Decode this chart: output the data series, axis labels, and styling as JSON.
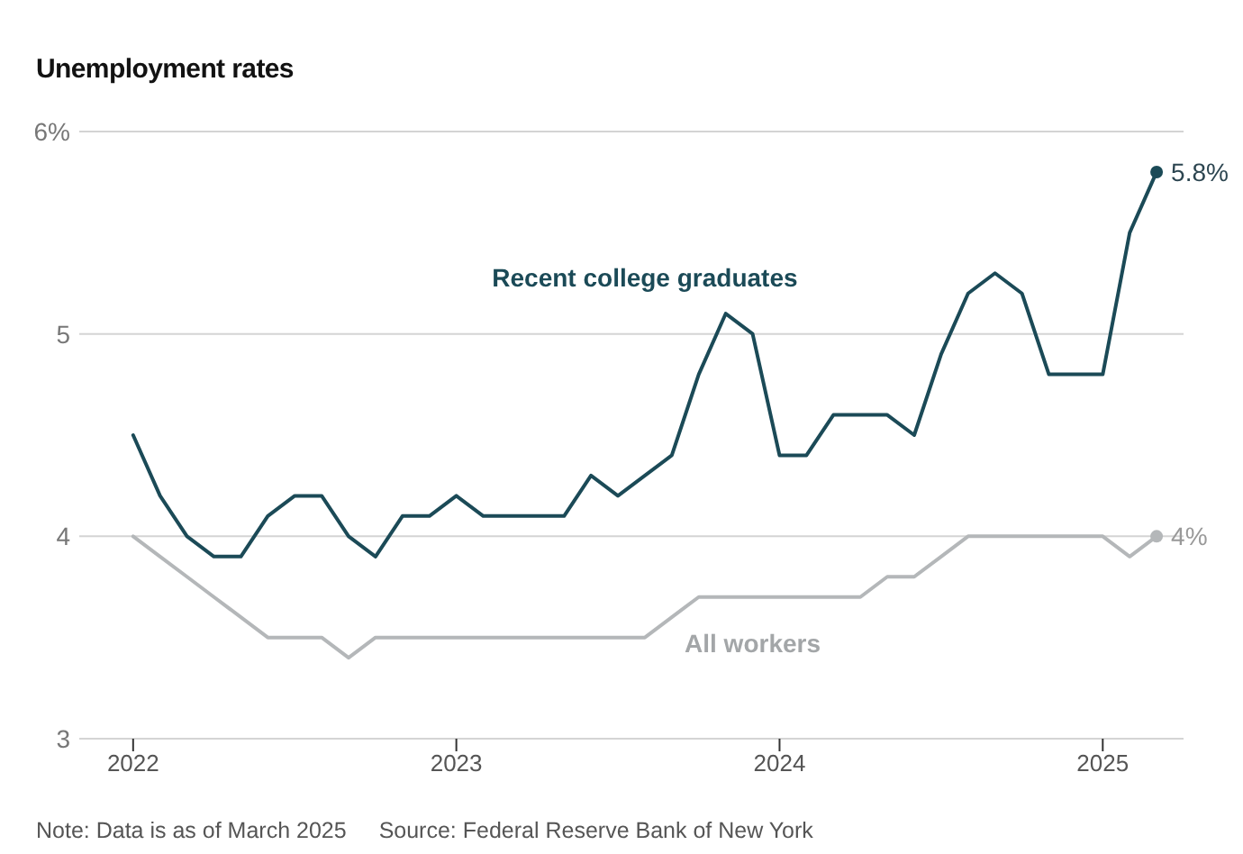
{
  "chart_data": {
    "type": "line",
    "title": "Unemployment rates",
    "x": [
      "2022-01",
      "2022-02",
      "2022-03",
      "2022-04",
      "2022-05",
      "2022-06",
      "2022-07",
      "2022-08",
      "2022-09",
      "2022-10",
      "2022-11",
      "2022-12",
      "2023-01",
      "2023-02",
      "2023-03",
      "2023-04",
      "2023-05",
      "2023-06",
      "2023-07",
      "2023-08",
      "2023-09",
      "2023-10",
      "2023-11",
      "2023-12",
      "2024-01",
      "2024-02",
      "2024-03",
      "2024-04",
      "2024-05",
      "2024-06",
      "2024-07",
      "2024-08",
      "2024-09",
      "2024-10",
      "2024-11",
      "2024-12",
      "2025-01",
      "2025-02",
      "2025-03"
    ],
    "series": [
      {
        "name": "Recent college graduates",
        "color": "#1b4a57",
        "values": [
          4.5,
          4.2,
          4.0,
          3.9,
          3.9,
          4.1,
          4.2,
          4.2,
          4.0,
          3.9,
          4.1,
          4.1,
          4.2,
          4.1,
          4.1,
          4.1,
          4.1,
          4.3,
          4.2,
          4.3,
          4.4,
          4.8,
          5.1,
          5.0,
          4.4,
          4.4,
          4.6,
          4.6,
          4.6,
          4.5,
          4.9,
          5.2,
          5.3,
          5.2,
          4.8,
          4.8,
          4.8,
          5.5,
          5.8
        ],
        "value_labels": [
          null,
          null,
          null,
          null,
          null,
          null,
          null,
          null,
          null,
          null,
          null,
          null,
          null,
          null,
          null,
          null,
          null,
          null,
          null,
          null,
          null,
          null,
          null,
          null,
          null,
          null,
          null,
          null,
          null,
          null,
          null,
          null,
          null,
          null,
          null,
          null,
          null,
          null,
          "5.8%"
        ]
      },
      {
        "name": "All workers",
        "color": "#b4b7b9",
        "values": [
          4.0,
          3.9,
          3.8,
          3.7,
          3.6,
          3.5,
          3.5,
          3.5,
          3.4,
          3.5,
          3.5,
          3.5,
          3.5,
          3.5,
          3.5,
          3.5,
          3.5,
          3.5,
          3.5,
          3.5,
          3.6,
          3.7,
          3.7,
          3.7,
          3.7,
          3.7,
          3.7,
          3.7,
          3.8,
          3.8,
          3.9,
          4.0,
          4.0,
          4.0,
          4.0,
          4.0,
          4.0,
          3.9,
          4.0
        ],
        "value_labels": [
          null,
          null,
          null,
          null,
          null,
          null,
          null,
          null,
          null,
          null,
          null,
          null,
          null,
          null,
          null,
          null,
          null,
          null,
          null,
          null,
          null,
          null,
          null,
          null,
          null,
          null,
          null,
          null,
          null,
          null,
          null,
          null,
          null,
          null,
          null,
          null,
          null,
          null,
          "4%"
        ]
      }
    ],
    "xlim": [
      "2021-11",
      "2025-04"
    ],
    "xticks": [
      "2022",
      "2023",
      "2024",
      "2025"
    ],
    "ylim": [
      3,
      6
    ],
    "yticks": [
      3,
      4,
      5,
      {
        "value": 6,
        "label": "6%"
      }
    ],
    "grid": "y",
    "annotations": [
      "Note: Data is as of March 2025",
      "Source: Federal Reserve Bank of New York"
    ]
  }
}
